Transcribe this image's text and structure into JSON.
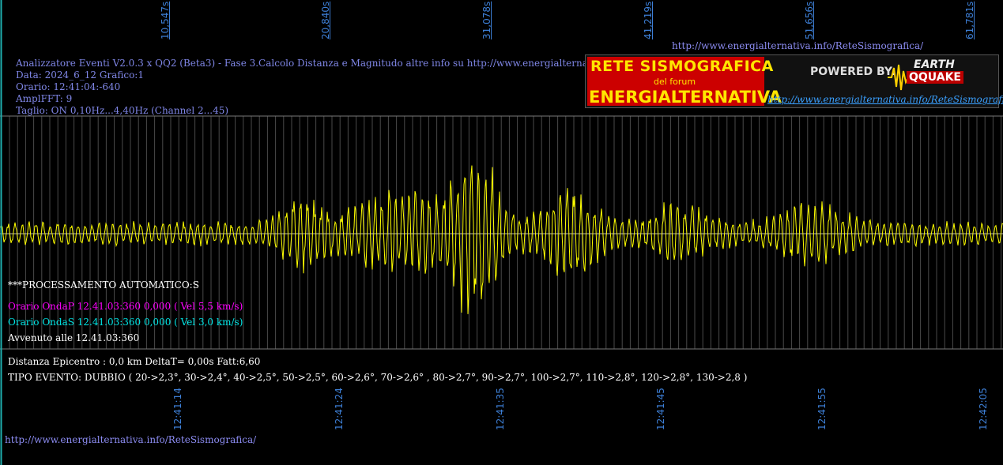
{
  "top_time_ticks": [
    "10,547s",
    "20,840s",
    "31,078s",
    "41,219s",
    "51,656s",
    "61,781s"
  ],
  "header_url": "http://www.energialternativa.info/ReteSismografica/",
  "info": {
    "line1": "Analizzatore Eventi V2.0.3 x QQ2 (Beta3) - Fase 3.Calcolo Distanza e Magnitudo altre info su http://www.energialternativa.info/ReteSismografica/",
    "line2": "Data: 2024_6_12 Grafico:1",
    "line3": "Orario: 12:41:04:-640",
    "line4": "AmplFFT: 9",
    "line5": "Taglio: ON 0,10Hz...4,40Hz       (Channel 2...45)"
  },
  "logo": {
    "title_top": "RETE SISMOGRAFICA",
    "subtitle": "del forum",
    "title_bottom": "ENERGIALTERNATIVA",
    "powered_by": "POWERED BY:",
    "earth": "EARTH",
    "qquake": "QQUAKE",
    "url": "http://www.energialternativa.info/ReteSismografica"
  },
  "processing": {
    "title": "***PROCESSAMENTO AUTOMATICO:S",
    "onda_p": "Orario OndaP 12.41.03:360  0,000 ( Vel 5,5 km/s)",
    "onda_s": "Orario OndaS 12.41.03:360  0,000 ( Vel 3,0 km/s)",
    "avvenuto": "Avvenuto alle 12.41.03:360"
  },
  "distance": "Distanza Epicentro : 0,0 km DeltaT= 0,00s  Fatt:6,60",
  "event_type": "TIPO EVENTO: DUBBIO ( 20->2,3°, 30->2,4°, 40->2,5°, 50->2,5°, 60->2,6°, 70->2,6° , 80->2,7°, 90->2,7°, 100->2,7°, 110->2,8°, 120->2,8°, 130->2,8 )",
  "bottom_time_ticks": [
    "12:41:14",
    "12:41:24",
    "12:41:35",
    "12:41:45",
    "12:41:55",
    "12:42:05"
  ],
  "footer_url": "http://www.energialternativa.info/ReteSismografica/",
  "colors": {
    "background": "#000000",
    "trace": "#ffff00",
    "onda_p": "#ff00ff",
    "onda_s": "#00e5e5",
    "tick_labels": "#3d7fd6",
    "grid": "#555555"
  }
}
